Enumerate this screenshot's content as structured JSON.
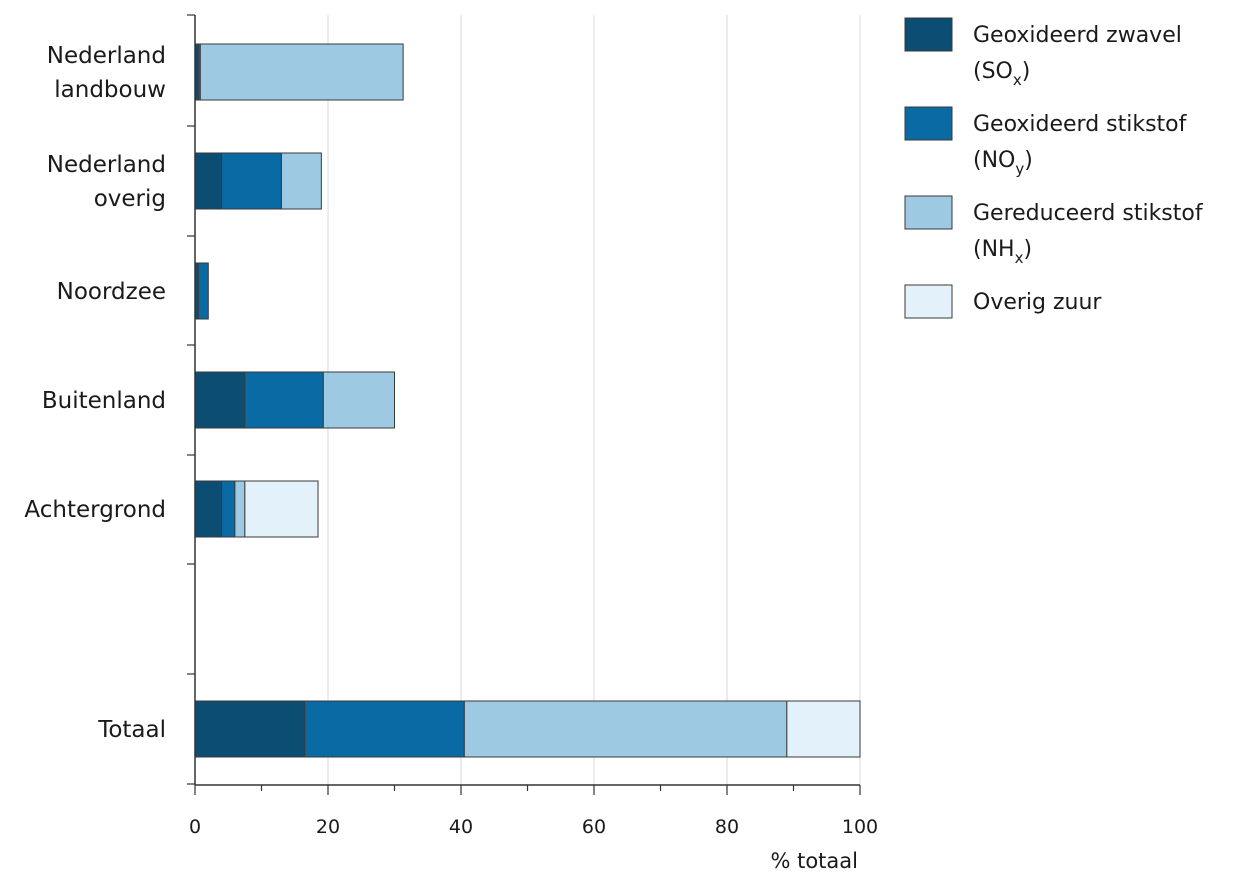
{
  "chart_data": {
    "type": "bar",
    "orientation": "horizontal",
    "stacked": true,
    "categories": [
      [
        "Nederland",
        "landbouw"
      ],
      [
        "Nederland",
        "overig"
      ],
      [
        "Noordzee"
      ],
      [
        "Buitenland"
      ],
      [
        "Achtergrond"
      ],
      [
        "Totaal"
      ]
    ],
    "series": [
      {
        "name": "Geoxideerd zwavel (SOx)",
        "legend_main": "Geoxideerd zwavel",
        "legend_paren": "SO",
        "legend_sub": "x",
        "color": "#0b4d73",
        "values": [
          0.5,
          4,
          0.5,
          7.5,
          4,
          16.5
        ]
      },
      {
        "name": "Geoxideerd stikstof (NOy)",
        "legend_main": "Geoxideerd stikstof",
        "legend_paren": "NO",
        "legend_sub": "y",
        "color": "#0a6aa3",
        "values": [
          0.3,
          9,
          1.5,
          11.8,
          2,
          24
        ]
      },
      {
        "name": "Gereduceerd stikstof (NHx)",
        "legend_main": "Gereduceerd stikstof",
        "legend_paren": "NH",
        "legend_sub": "x",
        "color": "#9dc9e2",
        "values": [
          30.5,
          6,
          0,
          10.7,
          1.5,
          48.5
        ]
      },
      {
        "name": "Overig zuur",
        "legend_main": "Overig zuur",
        "legend_paren": "",
        "legend_sub": "",
        "color": "#e3f2fa",
        "values": [
          0,
          0,
          0,
          0,
          11,
          11
        ]
      }
    ],
    "xlim": [
      0,
      100
    ],
    "xticks": [
      0,
      20,
      40,
      60,
      80,
      100
    ],
    "xlabel": "% totaal",
    "grid": "vertical",
    "legend": "top-right"
  }
}
